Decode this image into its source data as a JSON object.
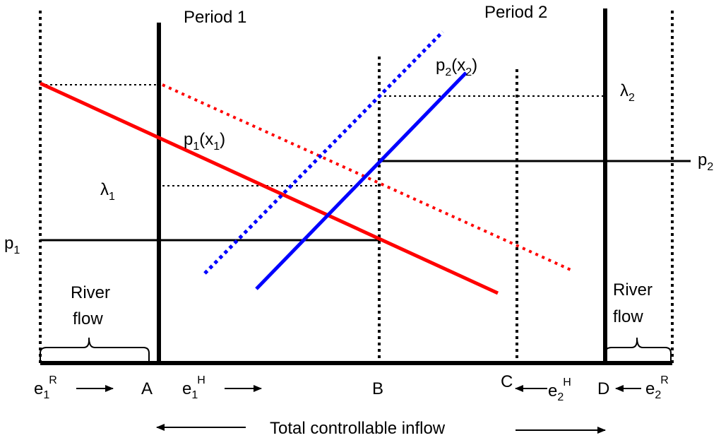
{
  "labels": {
    "period1": "Period 1",
    "period2": "Period 2",
    "p2x2": {
      "base": "p",
      "sub": "2",
      "paren": "(x",
      "sub2": "2",
      "close": ")"
    },
    "p1x1": {
      "base": "p",
      "sub": "1",
      "paren": "(x",
      "sub2": "1",
      "close": ")"
    },
    "lambda2": {
      "base": "λ",
      "sub": "2"
    },
    "lambda1": {
      "base": "λ",
      "sub": "1"
    },
    "p2": {
      "base": "p",
      "sub": "2"
    },
    "p1": {
      "base": "p",
      "sub": "1"
    },
    "river_left": [
      "River",
      "flow"
    ],
    "river_right": [
      "River",
      "flow"
    ],
    "e1R": {
      "base": "e",
      "sub": "1",
      "sup": "R"
    },
    "e1H": {
      "base": "e",
      "sub": "1",
      "sup": "H"
    },
    "e2H": {
      "base": "e",
      "sub": "2",
      "sup": "H"
    },
    "e2R": {
      "base": "e",
      "sub": "2",
      "sup": "R"
    },
    "A": "A",
    "B": "B",
    "C": "C",
    "D": "D",
    "total_inflow": "Total controllable inflow"
  },
  "colors": {
    "red": "#ff0000",
    "blue": "#0000ff",
    "black": "#000000"
  }
}
